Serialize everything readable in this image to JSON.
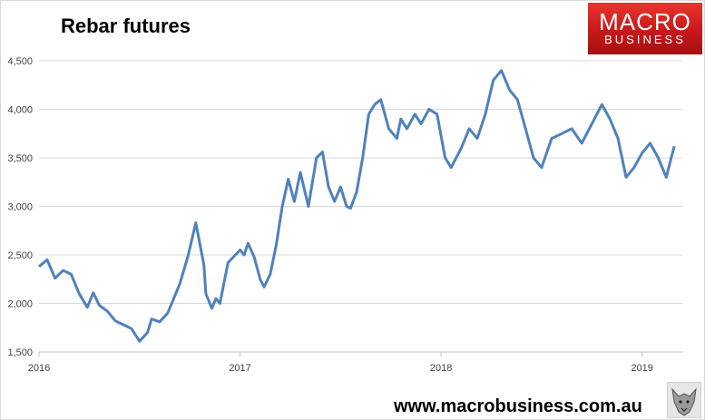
{
  "title": "Rebar futures",
  "logo": {
    "line1": "MACRO",
    "line2": "BUSINESS",
    "color_top": "#e8362f",
    "color_bottom": "#a40f12"
  },
  "footer": {
    "url": "www.macrobusiness.com.au",
    "badge_icon": "wolf-icon"
  },
  "chart_data": {
    "type": "line",
    "title": "Rebar futures",
    "xlabel": "",
    "ylabel": "",
    "x_ticks": [
      "2016",
      "2017",
      "2018",
      "2019"
    ],
    "y_ticks": [
      "1,500",
      "2,000",
      "2,500",
      "3,000",
      "3,500",
      "4,000",
      "4,500"
    ],
    "ylim": [
      1500,
      4500
    ],
    "xlim": [
      2016.0,
      2019.2
    ],
    "grid": "horizontal",
    "line_color": "#4f81bd",
    "series": [
      {
        "name": "",
        "x": [
          2016.0,
          2016.04,
          2016.08,
          2016.12,
          2016.16,
          2016.2,
          2016.24,
          2016.27,
          2016.3,
          2016.34,
          2016.38,
          2016.42,
          2016.46,
          2016.5,
          2016.54,
          2016.56,
          2016.6,
          2016.64,
          2016.7,
          2016.74,
          2016.78,
          2016.82,
          2016.83,
          2016.86,
          2016.88,
          2016.9,
          2016.94,
          2017.0,
          2017.02,
          2017.04,
          2017.07,
          2017.1,
          2017.12,
          2017.15,
          2017.18,
          2017.21,
          2017.24,
          2017.27,
          2017.3,
          2017.34,
          2017.38,
          2017.41,
          2017.44,
          2017.47,
          2017.5,
          2017.53,
          2017.55,
          2017.58,
          2017.61,
          2017.64,
          2017.67,
          2017.7,
          2017.74,
          2017.78,
          2017.8,
          2017.83,
          2017.87,
          2017.9,
          2017.94,
          2017.98,
          2018.02,
          2018.05,
          2018.1,
          2018.14,
          2018.18,
          2018.22,
          2018.26,
          2018.3,
          2018.34,
          2018.38,
          2018.42,
          2018.46,
          2018.5,
          2018.55,
          2018.6,
          2018.65,
          2018.7,
          2018.75,
          2018.8,
          2018.84,
          2018.88,
          2018.92,
          2018.96,
          2019.0,
          2019.04,
          2019.08,
          2019.12,
          2019.16
        ],
        "values": [
          2380,
          2450,
          2260,
          2340,
          2300,
          2100,
          1960,
          2110,
          1980,
          1920,
          1820,
          1780,
          1740,
          1610,
          1700,
          1840,
          1810,
          1900,
          2200,
          2480,
          2830,
          2400,
          2100,
          1950,
          2050,
          2000,
          2420,
          2550,
          2500,
          2620,
          2480,
          2250,
          2170,
          2300,
          2600,
          3000,
          3280,
          3050,
          3350,
          3000,
          3500,
          3560,
          3200,
          3050,
          3200,
          3000,
          2980,
          3150,
          3500,
          3950,
          4050,
          4100,
          3800,
          3700,
          3900,
          3800,
          3950,
          3850,
          4000,
          3950,
          3500,
          3400,
          3600,
          3800,
          3700,
          3950,
          4300,
          4400,
          4200,
          4100,
          3800,
          3500,
          3400,
          3700,
          3750,
          3800,
          3650,
          3850,
          4050,
          3900,
          3700,
          3300,
          3400,
          3550,
          3650,
          3500,
          3300,
          3620
        ]
      }
    ]
  }
}
